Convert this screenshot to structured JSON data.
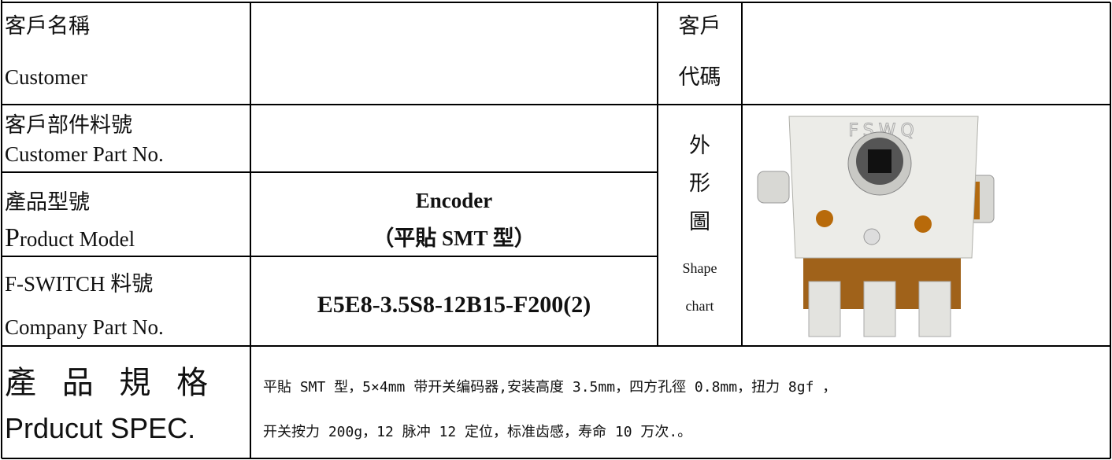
{
  "fields": [
    {
      "zh": "客戶名稱",
      "en": "Customer"
    },
    {
      "zh": "客戶部件料號",
      "en": "Customer Part No."
    },
    {
      "zh": "產品型號",
      "en": "Product Model",
      "value": [
        "Encoder",
        "（平貼 SMT 型）"
      ]
    },
    {
      "zh": "F-SWITCH 料號",
      "en": "Company Part No.",
      "value": [
        "E5E8-3.5S8-12B15-F200(2)"
      ]
    }
  ],
  "customer_code": [
    "客戶",
    "代碼"
  ],
  "shape": {
    "zh": [
      "外",
      "形",
      "圖"
    ],
    "en": [
      "Shape",
      "chart"
    ],
    "logo": "FSWQ"
  },
  "spec": {
    "zh": "產 品 規 格",
    "en": "Prducut SPEC.",
    "lines": [
      "平貼 SMT 型，5×4mm 带开关编码器,安装高度 3.5mm，四方孔徑 0.8mm，扭力 8gf ，",
      "开关按力 200g，12 脉冲 12 定位，标准齿感，寿命 10 万次.。"
    ]
  }
}
